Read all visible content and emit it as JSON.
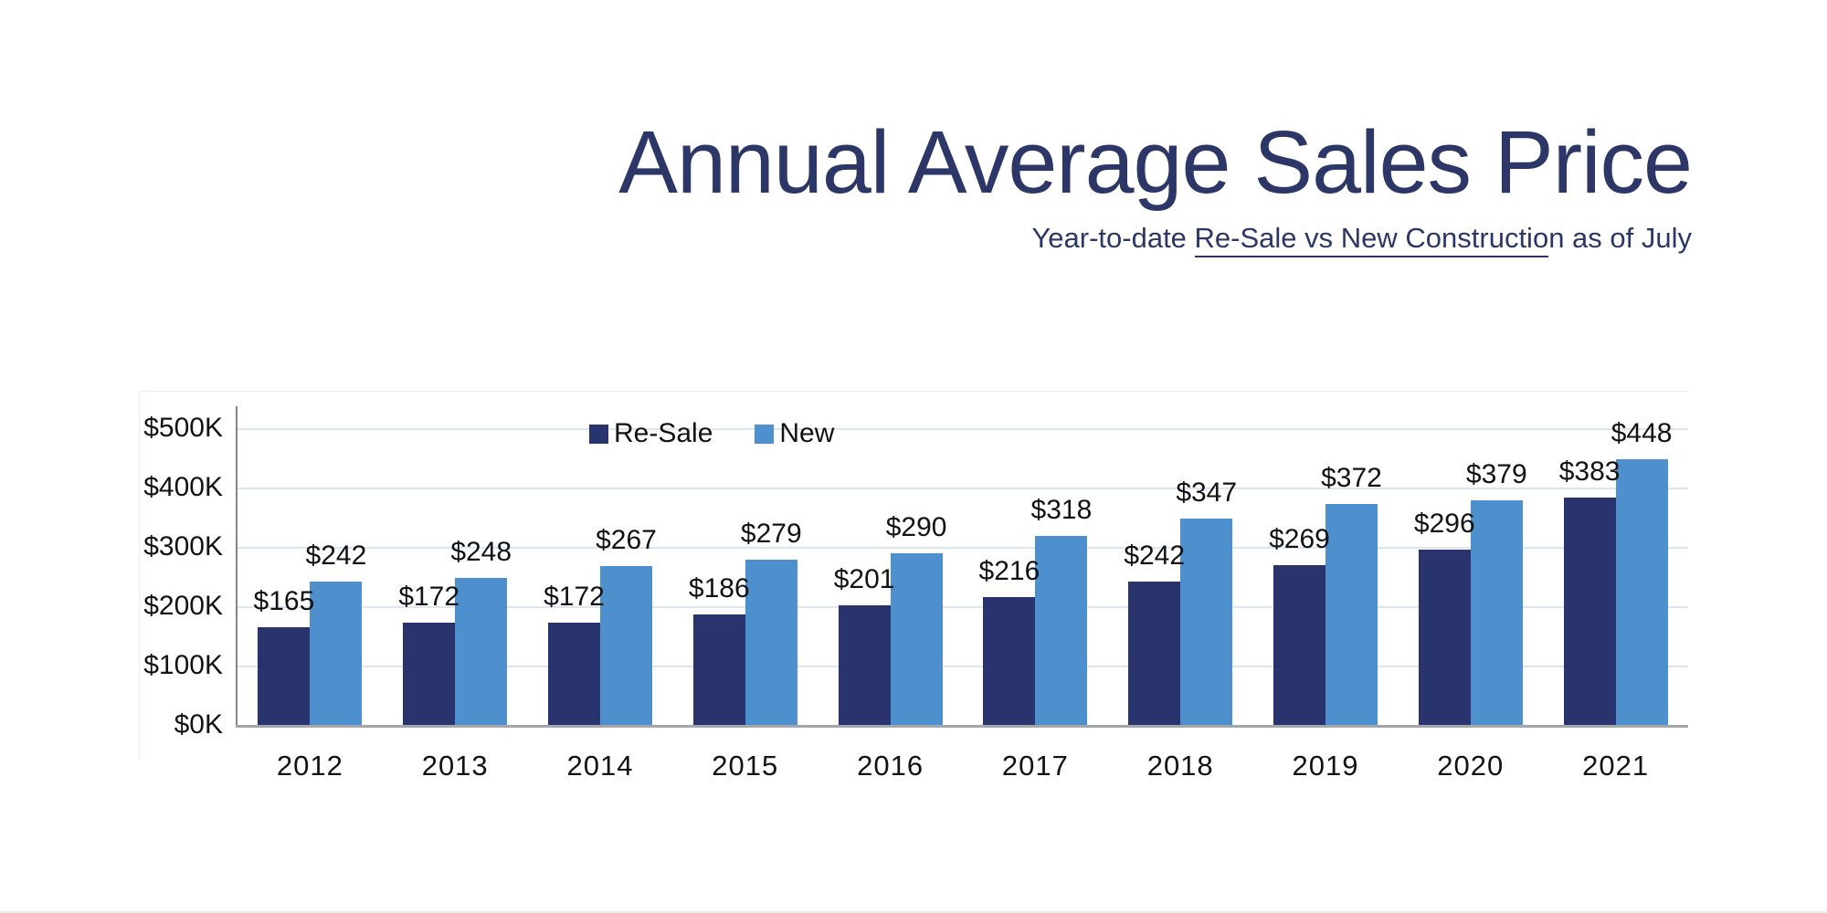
{
  "title": "Annual Average Sales Price",
  "subtitle": {
    "prefix": "Year-to-date ",
    "underlined": "Re-Sale vs New Constructio",
    "suffix": "n as of July"
  },
  "colors": {
    "title_text": "#2C3768",
    "resale_bar": "#29336E",
    "new_bar": "#4E90CE",
    "gridline": "#dce6f1",
    "axis_line": "#a3a7ad",
    "label_text": "#121212",
    "background": "#ffffff"
  },
  "chart_data": {
    "type": "bar",
    "title": "Annual Average Sales Price",
    "subtitle": "Year-to-date Re-Sale vs New Construction as of July",
    "categories": [
      "2012",
      "2013",
      "2014",
      "2015",
      "2016",
      "2017",
      "2018",
      "2019",
      "2020",
      "2021"
    ],
    "series": [
      {
        "name": "Re-Sale",
        "color": "#29336E",
        "values": [
          165,
          172,
          172,
          186,
          201,
          216,
          242,
          269,
          296,
          383
        ]
      },
      {
        "name": "New",
        "color": "#4E90CE",
        "values": [
          242,
          248,
          267,
          279,
          290,
          318,
          347,
          372,
          379,
          448
        ]
      }
    ],
    "value_prefix": "$",
    "data_labels": true,
    "grid": true,
    "legend_position": "top-inside",
    "ylim": [
      0,
      500
    ],
    "y_ticks": [
      {
        "label": "$0K",
        "value": 0
      },
      {
        "label": "$100K",
        "value": 100
      },
      {
        "label": "$200K",
        "value": 200
      },
      {
        "label": "$300K",
        "value": 300
      },
      {
        "label": "$400K",
        "value": 400
      },
      {
        "label": "$500K",
        "value": 500
      }
    ]
  }
}
